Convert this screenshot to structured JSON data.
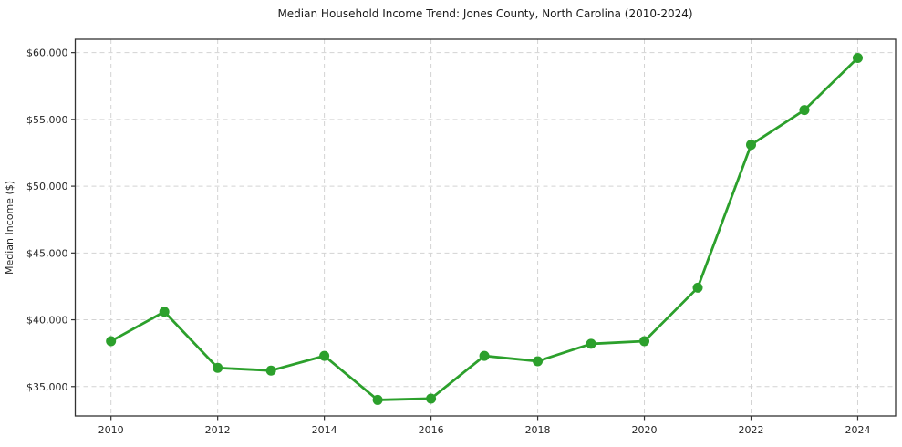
{
  "chart_data": {
    "type": "line",
    "title": "Median Household Income Trend: Jones County, North Carolina (2010-2024)",
    "xlabel": "",
    "ylabel": "Median Income ($)",
    "x": [
      2010,
      2011,
      2012,
      2013,
      2014,
      2015,
      2016,
      2017,
      2018,
      2019,
      2020,
      2021,
      2022,
      2023,
      2024
    ],
    "values": [
      38400,
      40600,
      36400,
      36200,
      37300,
      34000,
      34100,
      37300,
      36900,
      38200,
      38400,
      42400,
      53100,
      55700,
      59600
    ],
    "xticks": [
      2010,
      2012,
      2014,
      2016,
      2018,
      2020,
      2022,
      2024
    ],
    "xtick_labels": [
      "2010",
      "2012",
      "2014",
      "2016",
      "2018",
      "2020",
      "2022",
      "2024"
    ],
    "yticks": [
      35000,
      40000,
      45000,
      50000,
      55000,
      60000
    ],
    "ytick_labels": [
      "$35,000",
      "$40,000",
      "$45,000",
      "$50,000",
      "$55,000",
      "$60,000"
    ],
    "xlim": [
      2009.33,
      2024.71
    ],
    "ylim": [
      32800,
      61000
    ],
    "grid": true,
    "grid_style": "dashed",
    "legend": false,
    "colors": {
      "line": "#2ca02c",
      "marker": "#2ca02c",
      "grid": "#d3d3d3",
      "spine": "#333333",
      "tick_text": "#262626",
      "title_text": "#1a1a1a",
      "background": "#ffffff"
    },
    "marker": "circle",
    "marker_radius": 5.5,
    "line_width": 2.8
  }
}
